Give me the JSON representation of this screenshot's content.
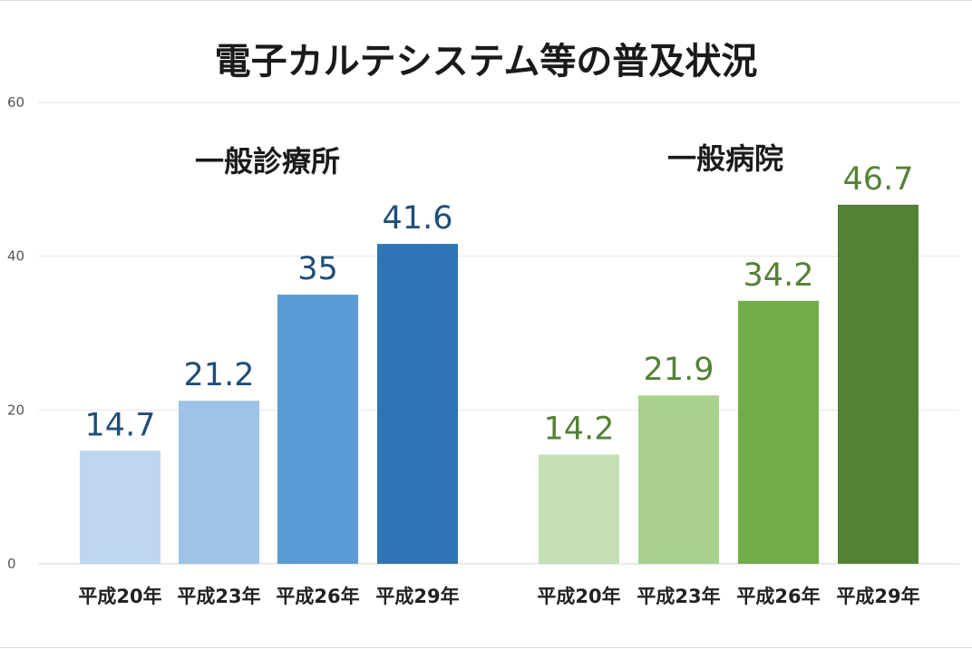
{
  "chart_data": {
    "type": "bar",
    "title": "電子カルテシステム等の普及状況",
    "ylim": [
      0,
      60
    ],
    "yticks": [
      0,
      20,
      40,
      60
    ],
    "grid": true,
    "groups": [
      {
        "name": "一般診療所",
        "categories": [
          "平成20年",
          "平成23年",
          "平成26年",
          "平成29年"
        ],
        "values": [
          14.7,
          21.2,
          35,
          41.6
        ],
        "value_labels": [
          "14.7",
          "21.2",
          "35",
          "41.6"
        ],
        "colors": [
          "#bdd7ee",
          "#9dc3e6",
          "#5b9bd5",
          "#2e75b6"
        ],
        "label_color": "#1f4e79"
      },
      {
        "name": "一般病院",
        "categories": [
          "平成20年",
          "平成23年",
          "平成26年",
          "平成29年"
        ],
        "values": [
          14.2,
          21.9,
          34.2,
          46.7
        ],
        "value_labels": [
          "14.2",
          "21.9",
          "34.2",
          "46.7"
        ],
        "colors": [
          "#c5e0b4",
          "#a9d18e",
          "#70ad47",
          "#548235"
        ],
        "label_color": "#548235"
      }
    ]
  }
}
